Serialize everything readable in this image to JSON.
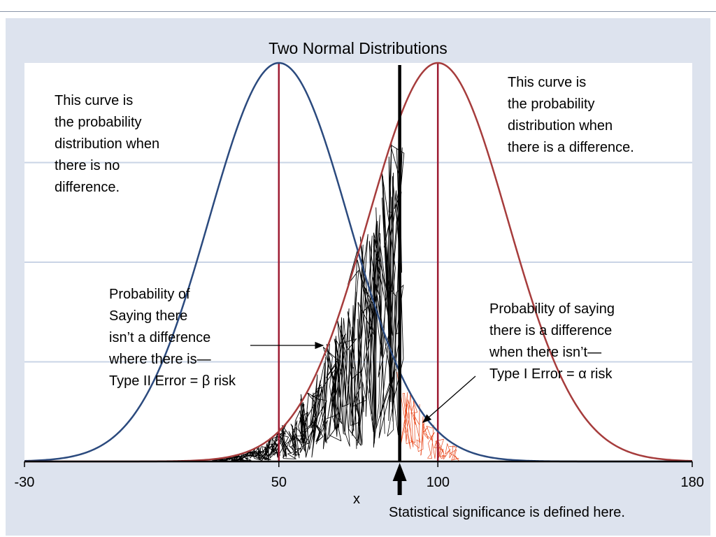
{
  "chart_data": {
    "type": "line",
    "title": "Two Normal Distributions",
    "xlabel": "x",
    "ylabel": "",
    "xlim": [
      -30,
      180
    ],
    "xticks": [
      "-30",
      "50",
      "100",
      "180"
    ],
    "grid": "horizontal",
    "series": [
      {
        "color": "#2b4a7e",
        "mean": 50,
        "sd": 22,
        "peak": 1
      },
      {
        "color": "#a63c3c",
        "mean": 100,
        "sd": 22,
        "peak": 1
      }
    ],
    "mean_lines": [
      50,
      100
    ],
    "critical_value": 88,
    "beta_region": [
      30,
      88
    ],
    "alpha_region": [
      88,
      106
    ]
  },
  "colors": {
    "frame": "#dde3ee",
    "mean_line": "#9e1b32",
    "scribble_beta": "#000000",
    "scribble_alpha": "#e8491d"
  },
  "annotations": {
    "left_curve": "This curve is\nthe probability\ndistribution when\nthere is no\ndifference.",
    "right_curve": "This curve is\nthe probability\ndistribution when\nthere is a difference.",
    "beta": "Probability of\nSaying there\nisn’t a difference\nwhere there is—\nType II Error = β risk",
    "alpha": "Probability of saying\nthere is a difference\nwhen there isn’t—\nType I Error = α risk",
    "significance": "Statistical significance is defined here."
  }
}
